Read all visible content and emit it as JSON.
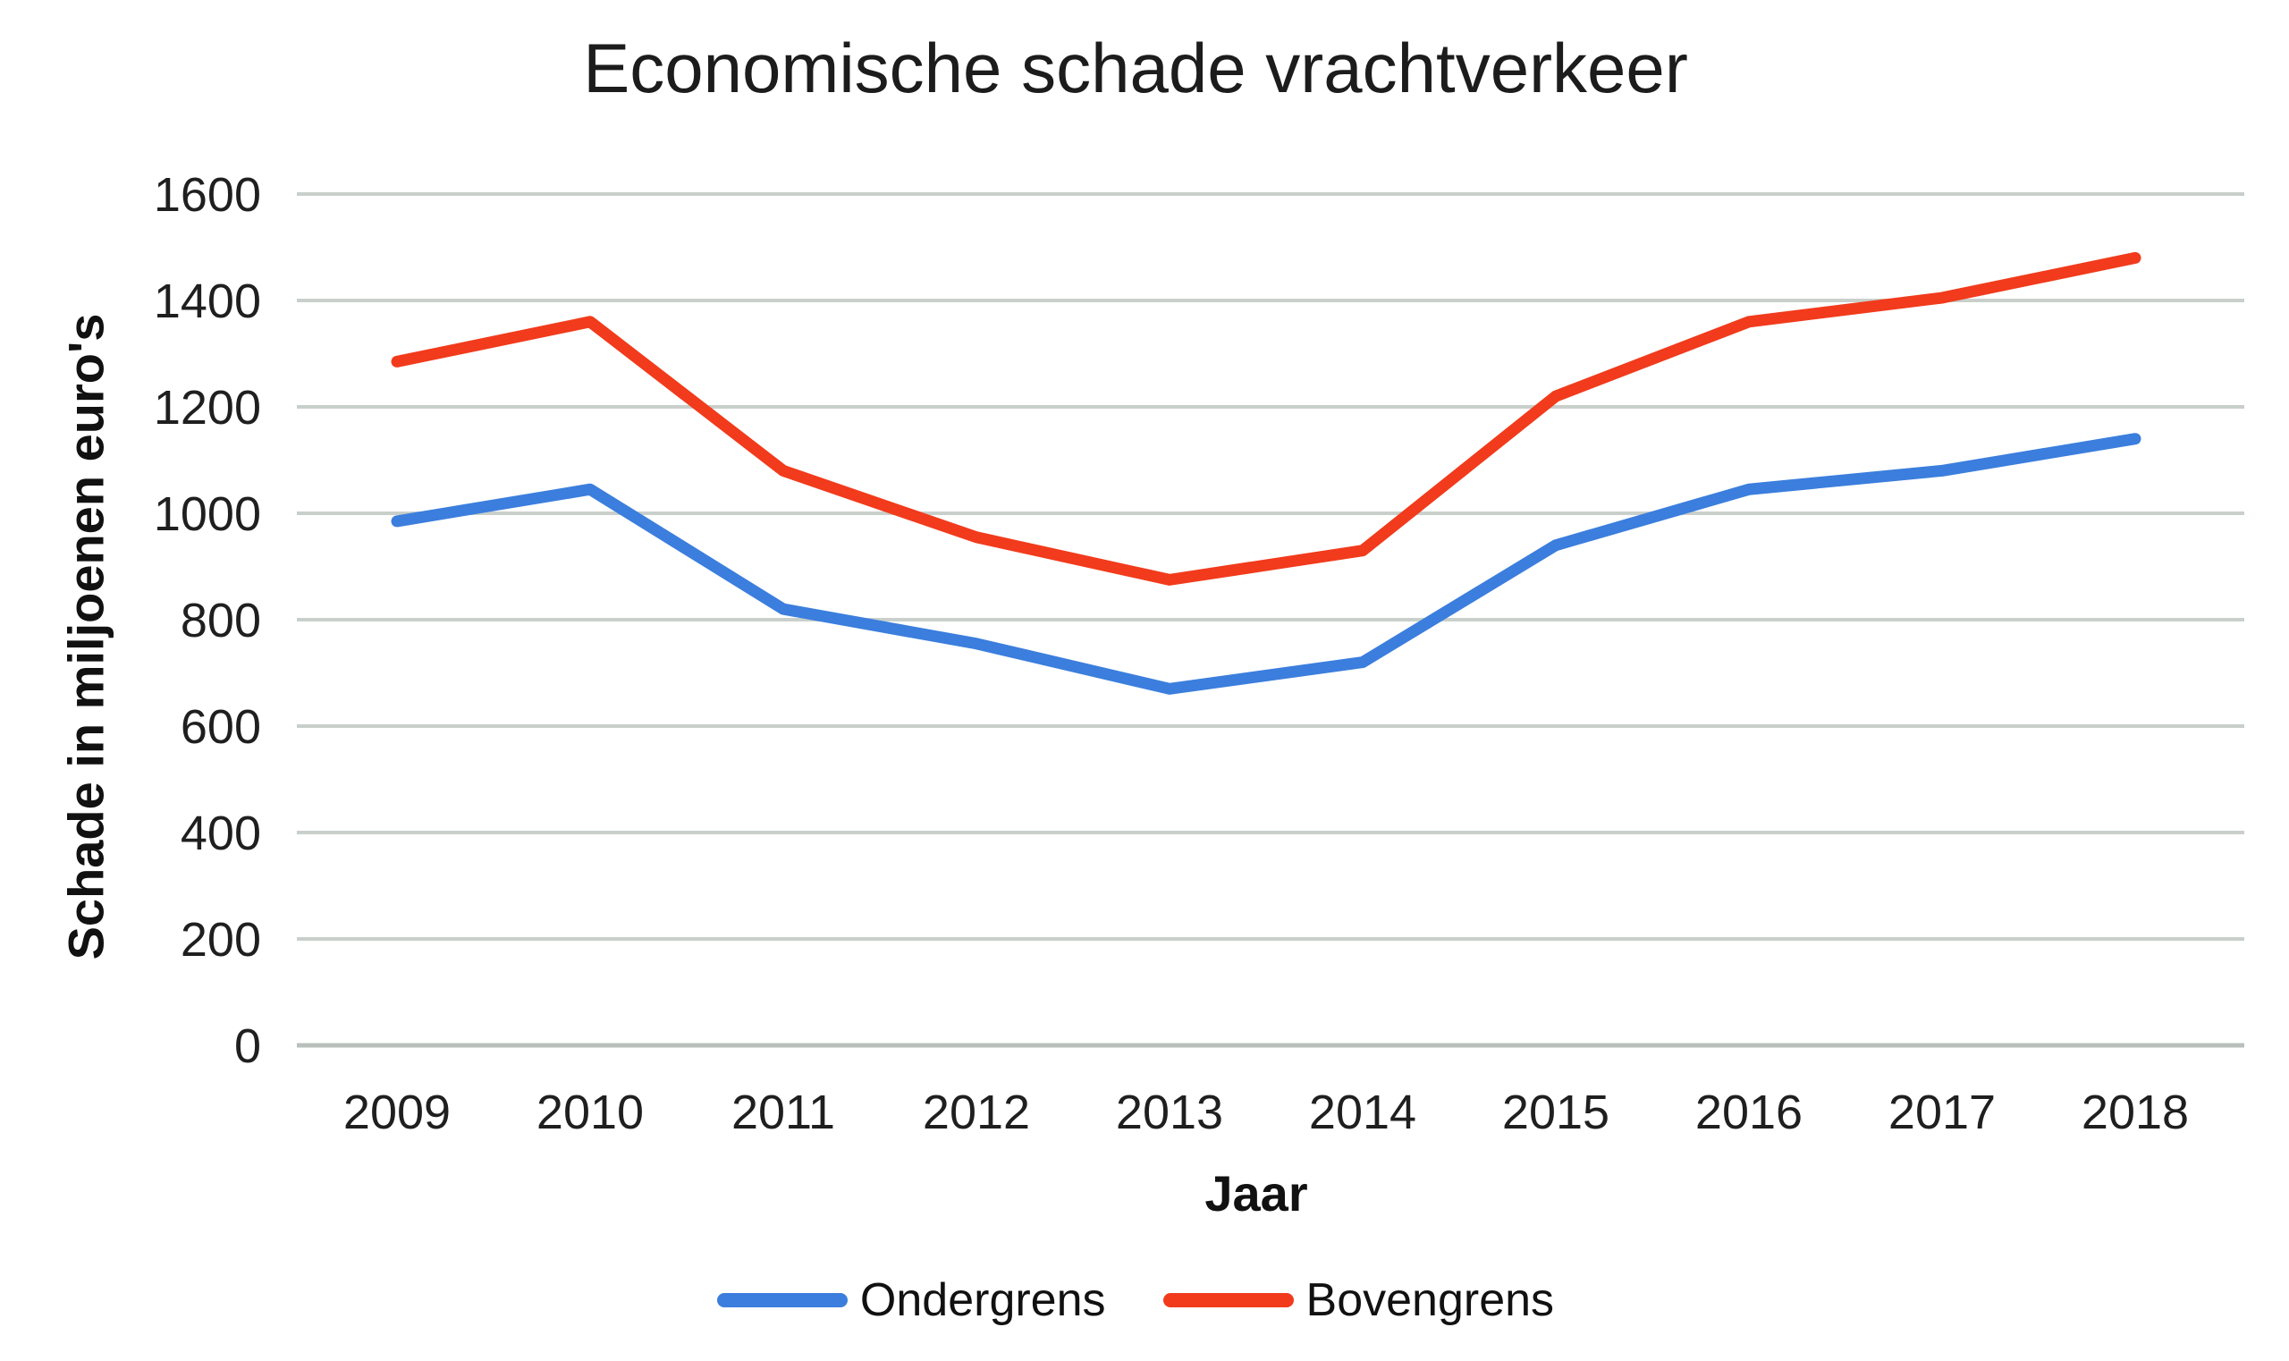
{
  "chart_data": {
    "type": "line",
    "title": "Economische schade vrachtverkeer",
    "xlabel": "Jaar",
    "ylabel": "Schade in miljoenen euro's",
    "categories": [
      "2009",
      "2010",
      "2011",
      "2012",
      "2013",
      "2014",
      "2015",
      "2016",
      "2017",
      "2018"
    ],
    "series": [
      {
        "name": "Ondergrens",
        "color": "#3b7edd",
        "values": [
          985,
          1045,
          820,
          755,
          670,
          720,
          940,
          1045,
          1080,
          1140
        ]
      },
      {
        "name": "Bovengrens",
        "color": "#f13b1c",
        "values": [
          1285,
          1360,
          1080,
          955,
          875,
          930,
          1220,
          1360,
          1405,
          1480
        ]
      }
    ],
    "ylim": [
      0,
      1600
    ],
    "yticks": [
      0,
      200,
      400,
      600,
      800,
      1000,
      1200,
      1400,
      1600
    ],
    "grid": "horizontal",
    "gridline_color": "#c9cfca",
    "axis_line_color": "#b9c0bc",
    "text_color": "#1f1f1f",
    "legend_position": "bottom"
  }
}
